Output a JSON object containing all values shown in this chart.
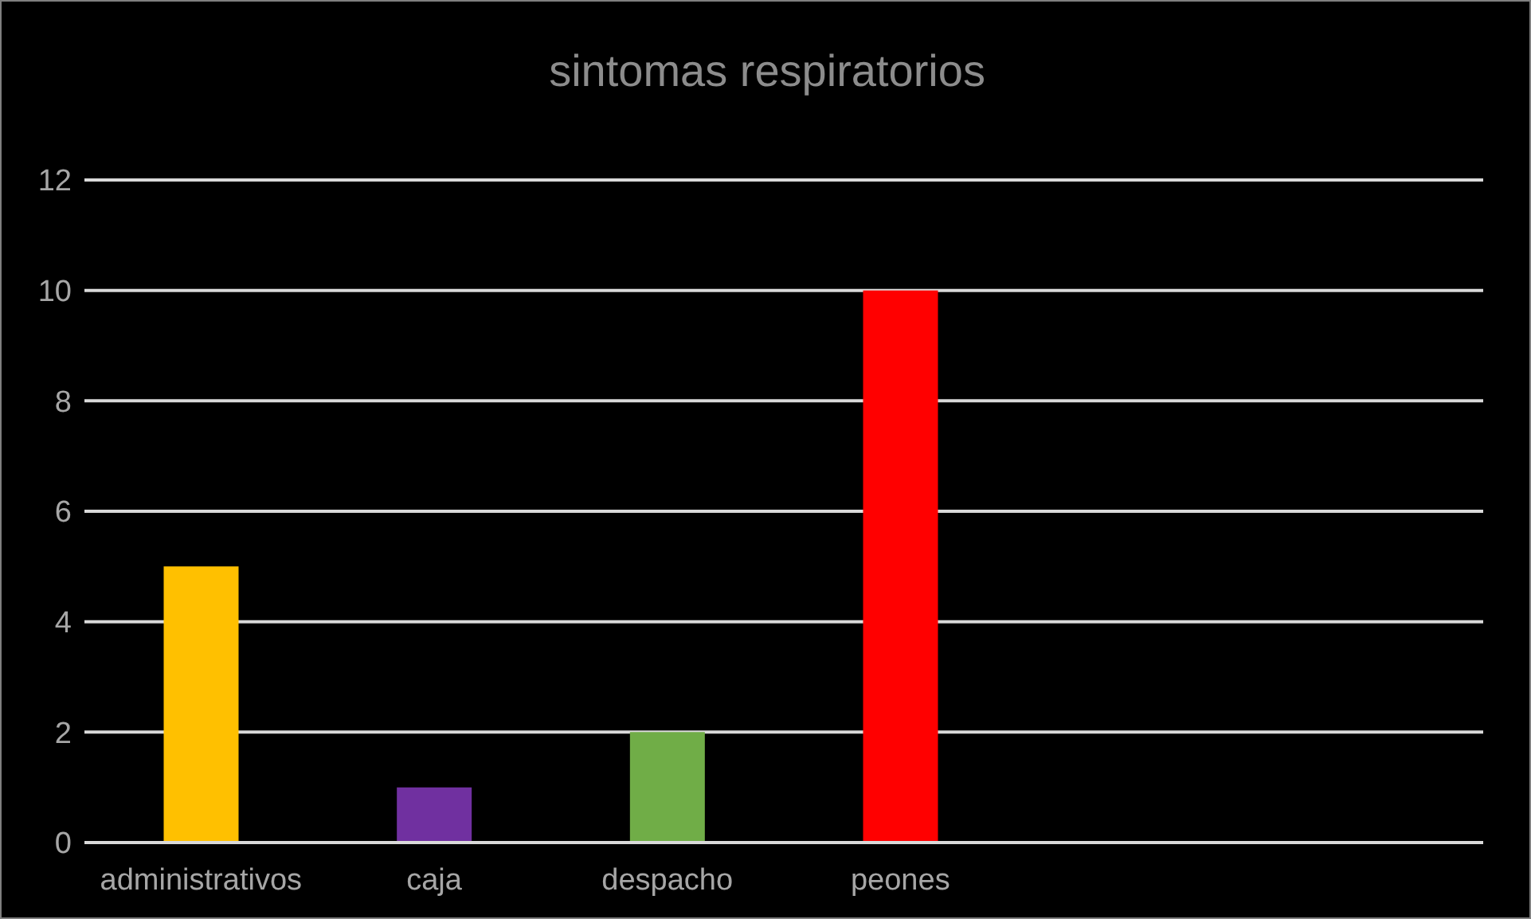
{
  "chart_data": {
    "type": "bar",
    "title": "sintomas respiratorios",
    "categories": [
      "administrativos",
      "caja",
      "despacho",
      "peones",
      null,
      null
    ],
    "values": [
      5,
      1,
      2,
      10,
      null,
      null
    ],
    "colors": [
      "#ffc000",
      "#7030a0",
      "#70ad47",
      "#ff0000",
      "#000000",
      "#000000"
    ],
    "ylim": [
      0,
      12
    ],
    "yticks": [
      0,
      2,
      4,
      6,
      8,
      10,
      12
    ],
    "grid": "y"
  }
}
